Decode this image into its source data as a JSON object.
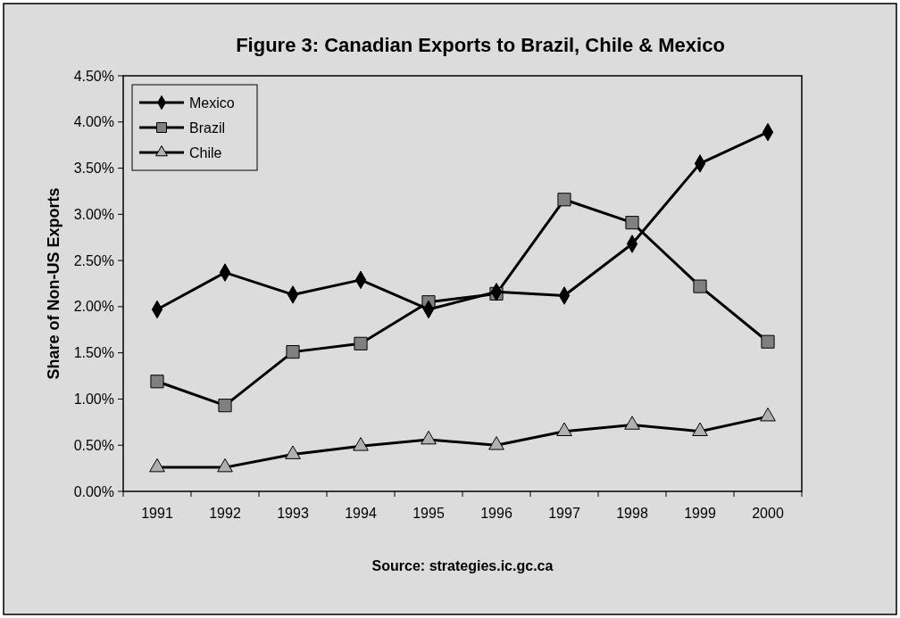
{
  "chart_data": {
    "type": "line",
    "title": "Figure 3: Canadian Exports to Brazil, Chile & Mexico",
    "ylabel": "Share of Non-US Exports",
    "categories": [
      "1991",
      "1992",
      "1993",
      "1994",
      "1995",
      "1996",
      "1997",
      "1998",
      "1999",
      "2000"
    ],
    "series": [
      {
        "name": "Mexico",
        "color": "#000000",
        "marker": "diamond",
        "values": [
          1.97,
          2.37,
          2.13,
          2.29,
          1.97,
          2.16,
          2.12,
          2.68,
          3.55,
          3.89
        ]
      },
      {
        "name": "Brazil",
        "color": "#808080",
        "marker": "square",
        "values": [
          1.19,
          0.93,
          1.51,
          1.6,
          2.05,
          2.14,
          3.16,
          2.91,
          2.22,
          1.62
        ]
      },
      {
        "name": "Chile",
        "color": "#b0b0b0",
        "marker": "triangle",
        "values": [
          0.26,
          0.26,
          0.4,
          0.49,
          0.56,
          0.5,
          0.65,
          0.72,
          0.65,
          0.81
        ]
      }
    ],
    "ylim": [
      0,
      4.5
    ],
    "yticks": [
      {
        "value": 0,
        "label": "0.00%"
      },
      {
        "value": 0.5,
        "label": "0.50%"
      },
      {
        "value": 1,
        "label": "1.00%"
      },
      {
        "value": 1.5,
        "label": "1.50%"
      },
      {
        "value": 2,
        "label": "2.00%"
      },
      {
        "value": 2.5,
        "label": "2.50%"
      },
      {
        "value": 3,
        "label": "3.00%"
      },
      {
        "value": 3.5,
        "label": "3.50%"
      },
      {
        "value": 4,
        "label": "4.00%"
      },
      {
        "value": 4.5,
        "label": "4.50%"
      }
    ],
    "grid": false,
    "legend": "top left",
    "annotations": [
      "Source: strategies.ic.gc.ca"
    ]
  }
}
